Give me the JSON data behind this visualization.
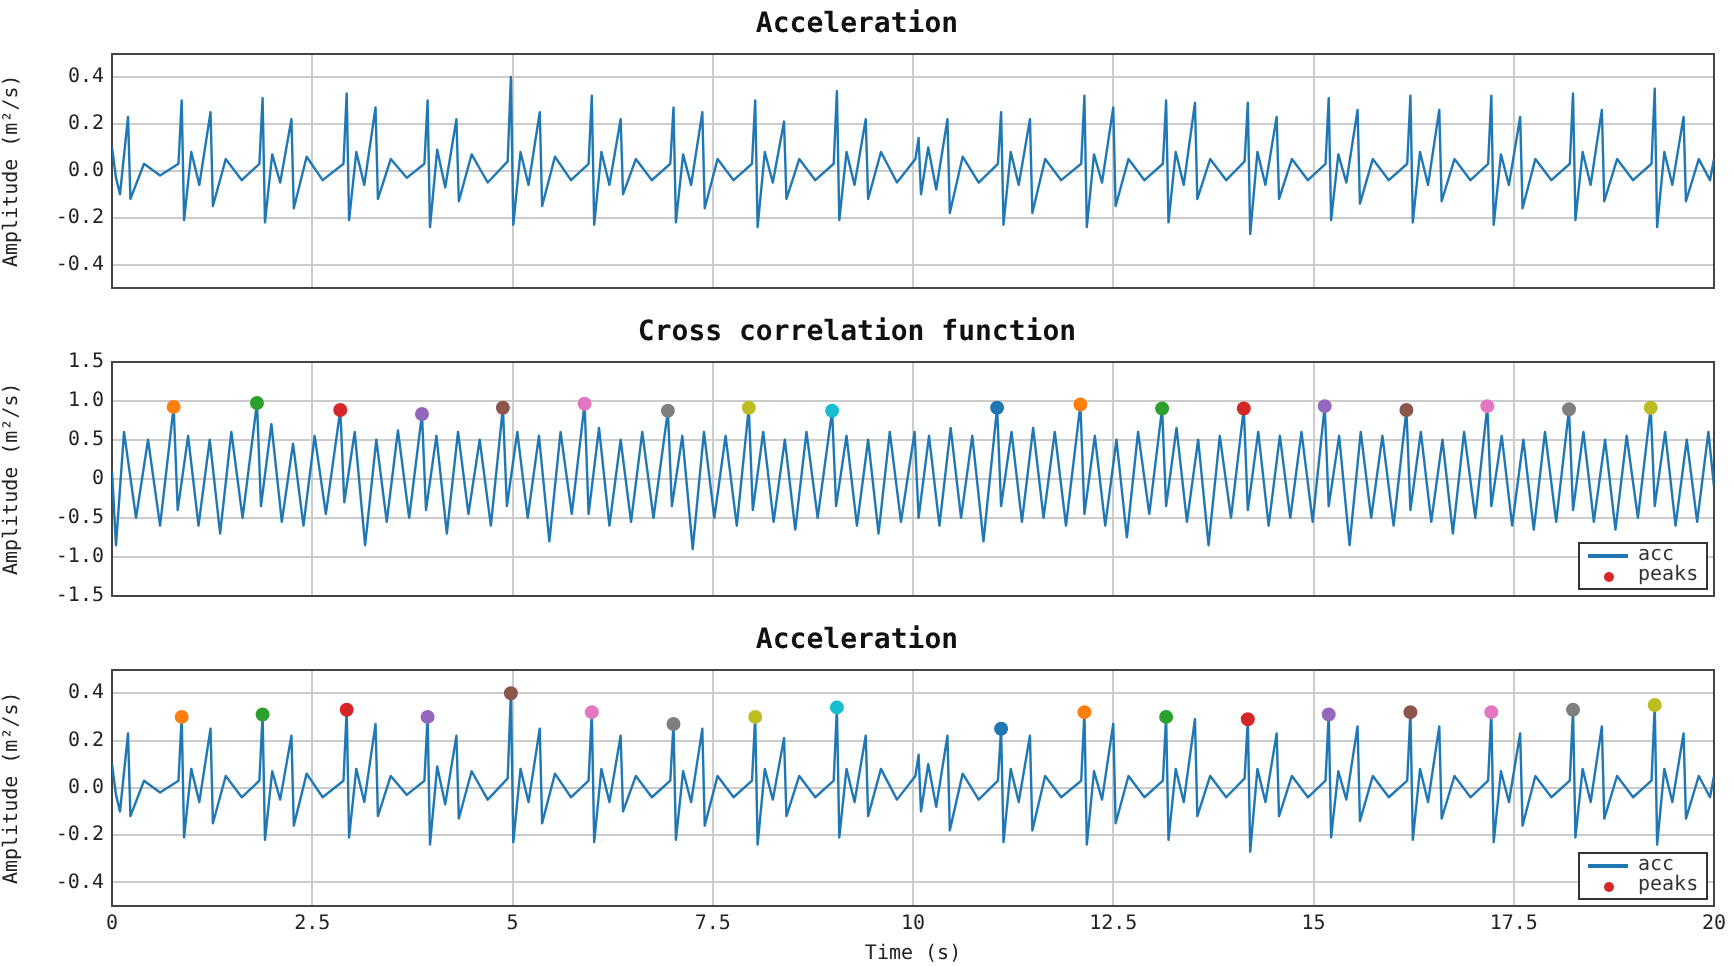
{
  "chart_data": [
    {
      "type": "line",
      "title": "Acceleration",
      "ylabel": "Amplitude (m²/s)",
      "xlim": [
        0,
        20
      ],
      "xticks": [
        0,
        2.5,
        5,
        7.5,
        10,
        12.5,
        15,
        17.5,
        20
      ],
      "ylim": [
        -0.5,
        0.5
      ],
      "yticks": [
        {
          "value": -0.4,
          "label": "-0.4"
        },
        {
          "value": -0.2,
          "label": "-0.2"
        },
        {
          "value": 0,
          "label": "0.0"
        },
        {
          "value": 0.2,
          "label": "0.2"
        },
        {
          "value": 0.4,
          "label": "0.4"
        }
      ],
      "grid": true,
      "legend": false,
      "tick_labels": "y",
      "x": [
        0,
        0.05,
        0.1,
        0.2,
        0.23,
        0.4,
        0.6,
        0.83,
        0.87,
        0.9,
        0.99,
        1.09,
        1.23,
        1.26,
        1.42,
        1.62,
        1.84,
        1.88,
        1.91,
        2.0,
        2.1,
        2.24,
        2.27,
        2.43,
        2.63,
        2.89,
        2.93,
        2.96,
        3.05,
        3.15,
        3.29,
        3.32,
        3.48,
        3.68,
        3.9,
        3.94,
        3.97,
        4.06,
        4.16,
        4.3,
        4.33,
        4.49,
        4.69,
        4.94,
        4.98,
        5.01,
        5.1,
        5.2,
        5.34,
        5.37,
        5.53,
        5.73,
        5.95,
        5.99,
        6.02,
        6.11,
        6.21,
        6.35,
        6.38,
        6.54,
        6.74,
        6.97,
        7.01,
        7.04,
        7.13,
        7.23,
        7.37,
        7.4,
        7.56,
        7.76,
        7.99,
        8.03,
        8.06,
        8.15,
        8.25,
        8.39,
        8.42,
        8.58,
        8.78,
        9.01,
        9.05,
        9.08,
        9.17,
        9.27,
        9.41,
        9.44,
        9.6,
        9.8,
        10.03,
        10.07,
        10.1,
        10.19,
        10.29,
        10.43,
        10.46,
        10.62,
        10.82,
        11.06,
        11.1,
        11.13,
        11.22,
        11.32,
        11.46,
        11.49,
        11.65,
        11.85,
        12.1,
        12.14,
        12.17,
        12.26,
        12.36,
        12.5,
        12.53,
        12.69,
        12.89,
        13.12,
        13.16,
        13.19,
        13.28,
        13.38,
        13.52,
        13.55,
        13.71,
        13.91,
        14.14,
        14.18,
        14.21,
        14.3,
        14.4,
        14.54,
        14.57,
        14.73,
        14.93,
        15.15,
        15.19,
        15.22,
        15.31,
        15.41,
        15.55,
        15.58,
        15.74,
        15.94,
        16.17,
        16.21,
        16.24,
        16.33,
        16.43,
        16.57,
        16.6,
        16.76,
        16.96,
        17.18,
        17.22,
        17.25,
        17.34,
        17.44,
        17.58,
        17.61,
        17.77,
        17.97,
        18.2,
        18.24,
        18.27,
        18.36,
        18.46,
        18.6,
        18.63,
        18.79,
        18.99,
        19.22,
        19.26,
        19.29,
        19.38,
        19.48,
        19.62,
        19.65,
        19.81,
        19.95,
        20
      ],
      "series": [
        {
          "color": "#1f77b4",
          "marker": "none",
          "values": [
            0.1,
            -0.03,
            -0.1,
            0.23,
            -0.12,
            0.03,
            -0.02,
            0.03,
            0.3,
            -0.21,
            0.08,
            -0.06,
            0.25,
            -0.15,
            0.05,
            -0.04,
            0.03,
            0.31,
            -0.22,
            0.07,
            -0.05,
            0.22,
            -0.16,
            0.06,
            -0.04,
            0.03,
            0.33,
            -0.21,
            0.08,
            -0.06,
            0.27,
            -0.12,
            0.05,
            -0.03,
            0.03,
            0.3,
            -0.24,
            0.09,
            -0.07,
            0.22,
            -0.13,
            0.07,
            -0.05,
            0.04,
            0.4,
            -0.23,
            0.08,
            -0.06,
            0.25,
            -0.15,
            0.06,
            -0.04,
            0.03,
            0.32,
            -0.23,
            0.08,
            -0.06,
            0.22,
            -0.1,
            0.05,
            -0.04,
            0.03,
            0.27,
            -0.22,
            0.07,
            -0.06,
            0.25,
            -0.16,
            0.05,
            -0.04,
            0.03,
            0.3,
            -0.24,
            0.08,
            -0.05,
            0.21,
            -0.12,
            0.05,
            -0.04,
            0.03,
            0.34,
            -0.21,
            0.08,
            -0.06,
            0.22,
            -0.12,
            0.08,
            -0.05,
            0.05,
            0.14,
            -0.1,
            0.1,
            -0.08,
            0.22,
            -0.18,
            0.06,
            -0.05,
            0.03,
            0.25,
            -0.23,
            0.08,
            -0.06,
            0.22,
            -0.18,
            0.05,
            -0.04,
            0.03,
            0.32,
            -0.24,
            0.07,
            -0.05,
            0.27,
            -0.15,
            0.05,
            -0.04,
            0.03,
            0.3,
            -0.22,
            0.08,
            -0.06,
            0.29,
            -0.12,
            0.05,
            -0.04,
            0.04,
            0.29,
            -0.27,
            0.08,
            -0.06,
            0.23,
            -0.12,
            0.05,
            -0.04,
            0.03,
            0.31,
            -0.21,
            0.07,
            -0.05,
            0.26,
            -0.14,
            0.05,
            -0.04,
            0.03,
            0.32,
            -0.22,
            0.08,
            -0.06,
            0.26,
            -0.13,
            0.05,
            -0.04,
            0.03,
            0.32,
            -0.23,
            0.07,
            -0.06,
            0.23,
            -0.16,
            0.05,
            -0.04,
            0.03,
            0.33,
            -0.21,
            0.08,
            -0.06,
            0.26,
            -0.13,
            0.05,
            -0.04,
            0.03,
            0.35,
            -0.24,
            0.08,
            -0.06,
            0.23,
            -0.13,
            0.05,
            -0.04,
            0.05
          ]
        }
      ]
    },
    {
      "type": "line",
      "title": "Cross correlation function",
      "ylabel": "Amplitude (m²/s)",
      "xlim": [
        0,
        20
      ],
      "xticks": [
        0,
        2.5,
        5,
        7.5,
        10,
        12.5,
        15,
        17.5,
        20
      ],
      "ylim": [
        -1.5,
        1.5
      ],
      "yticks": [
        {
          "value": -1.5,
          "label": "-1.5"
        },
        {
          "value": -1,
          "label": "-1.0"
        },
        {
          "value": -0.5,
          "label": "-0.5"
        },
        0,
        {
          "value": 0.5,
          "label": "0.5"
        },
        {
          "value": 1,
          "label": "1.0"
        },
        {
          "value": 1.5,
          "label": "1.5"
        }
      ],
      "grid": true,
      "legend": "bottom right",
      "tick_labels": "y",
      "series": [
        {
          "name": "acc",
          "color": "#1f77b4",
          "marker": "none",
          "x": [
            0,
            0.05,
            0.15,
            0.3,
            0.45,
            0.6,
            0.77,
            0.82,
            0.95,
            1.08,
            1.22,
            1.35,
            1.49,
            1.63,
            1.81,
            1.86,
            1.99,
            2.12,
            2.26,
            2.39,
            2.53,
            2.67,
            2.85,
            2.9,
            3.03,
            3.16,
            3.3,
            3.43,
            3.57,
            3.71,
            3.87,
            3.92,
            4.05,
            4.18,
            4.32,
            4.45,
            4.59,
            4.73,
            4.88,
            4.93,
            5.06,
            5.19,
            5.33,
            5.46,
            5.6,
            5.74,
            5.9,
            5.95,
            6.08,
            6.21,
            6.35,
            6.48,
            6.62,
            6.76,
            6.94,
            6.99,
            7.12,
            7.25,
            7.39,
            7.52,
            7.66,
            7.8,
            7.95,
            8.0,
            8.13,
            8.26,
            8.4,
            8.53,
            8.67,
            8.81,
            8.99,
            9.04,
            9.17,
            9.3,
            9.44,
            9.57,
            9.71,
            9.85,
            10.02,
            10.07,
            10.2,
            10.33,
            10.47,
            10.6,
            10.74,
            10.88,
            11.05,
            11.1,
            11.23,
            11.36,
            11.5,
            11.63,
            11.77,
            11.91,
            12.09,
            12.14,
            12.27,
            12.4,
            12.54,
            12.67,
            12.81,
            12.95,
            13.11,
            13.16,
            13.29,
            13.42,
            13.56,
            13.69,
            13.83,
            13.97,
            14.13,
            14.18,
            14.31,
            14.44,
            14.58,
            14.71,
            14.85,
            14.99,
            15.14,
            15.19,
            15.32,
            15.45,
            15.59,
            15.72,
            15.86,
            16.0,
            16.16,
            16.21,
            16.34,
            16.47,
            16.61,
            16.74,
            16.88,
            17.02,
            17.17,
            17.22,
            17.35,
            17.48,
            17.62,
            17.75,
            17.89,
            18.03,
            18.19,
            18.24,
            18.37,
            18.5,
            18.64,
            18.77,
            18.91,
            19.05,
            19.21,
            19.26,
            19.39,
            19.52,
            19.66,
            19.79,
            19.93,
            20
          ],
          "values": [
            0.1,
            -0.85,
            0.6,
            -0.5,
            0.5,
            -0.6,
            0.92,
            -0.4,
            0.55,
            -0.6,
            0.5,
            -0.7,
            0.6,
            -0.5,
            0.97,
            -0.35,
            0.7,
            -0.55,
            0.45,
            -0.6,
            0.55,
            -0.45,
            0.88,
            -0.3,
            0.6,
            -0.85,
            0.5,
            -0.55,
            0.62,
            -0.5,
            0.83,
            -0.4,
            0.55,
            -0.7,
            0.6,
            -0.45,
            0.5,
            -0.6,
            0.91,
            -0.35,
            0.6,
            -0.5,
            0.55,
            -0.8,
            0.6,
            -0.45,
            0.96,
            -0.45,
            0.65,
            -0.6,
            0.5,
            -0.55,
            0.6,
            -0.5,
            0.87,
            -0.35,
            0.55,
            -0.9,
            0.6,
            -0.5,
            0.55,
            -0.6,
            0.91,
            -0.4,
            0.6,
            -0.55,
            0.5,
            -0.65,
            0.6,
            -0.5,
            0.87,
            -0.35,
            0.55,
            -0.6,
            0.5,
            -0.7,
            0.6,
            -0.55,
            0.6,
            -0.5,
            0.55,
            -0.6,
            0.65,
            -0.5,
            0.55,
            -0.8,
            0.91,
            -0.35,
            0.6,
            -0.55,
            0.65,
            -0.5,
            0.6,
            -0.6,
            0.95,
            -0.45,
            0.55,
            -0.6,
            0.5,
            -0.75,
            0.6,
            -0.45,
            0.9,
            -0.35,
            0.65,
            -0.55,
            0.5,
            -0.85,
            0.55,
            -0.5,
            0.9,
            -0.4,
            0.6,
            -0.6,
            0.55,
            -0.5,
            0.6,
            -0.55,
            0.93,
            -0.35,
            0.55,
            -0.85,
            0.6,
            -0.5,
            0.55,
            -0.6,
            0.88,
            -0.4,
            0.6,
            -0.55,
            0.5,
            -0.7,
            0.6,
            -0.5,
            0.93,
            -0.35,
            0.55,
            -0.6,
            0.5,
            -0.65,
            0.6,
            -0.55,
            0.89,
            -0.4,
            0.6,
            -0.55,
            0.5,
            -0.65,
            0.55,
            -0.5,
            0.91,
            -0.35,
            0.6,
            -0.6,
            0.5,
            -0.55,
            0.6,
            -0.1
          ]
        },
        {
          "name": "peaks",
          "type": "scatter",
          "marker": "circle",
          "color": "#d62728",
          "x": [
            0.77,
            1.81,
            2.85,
            3.87,
            4.88,
            5.9,
            6.94,
            7.95,
            8.99,
            11.05,
            12.09,
            13.11,
            14.13,
            15.14,
            16.16,
            17.17,
            18.19,
            19.21
          ],
          "values": [
            0.92,
            0.97,
            0.88,
            0.83,
            0.91,
            0.96,
            0.87,
            0.91,
            0.87,
            0.91,
            0.95,
            0.9,
            0.9,
            0.93,
            0.88,
            0.93,
            0.89,
            0.91
          ],
          "colors": [
            "#ff7f0e",
            "#2ca02c",
            "#d62728",
            "#9467bd",
            "#8c564b",
            "#e377c2",
            "#7f7f7f",
            "#bcbd22",
            "#17becf",
            "#1f77b4",
            "#ff7f0e",
            "#2ca02c",
            "#d62728",
            "#9467bd",
            "#8c564b",
            "#e377c2",
            "#7f7f7f",
            "#bcbd22"
          ]
        }
      ]
    },
    {
      "type": "line",
      "title": "Acceleration",
      "xlabel": "Time (s)",
      "ylabel": "Amplitude (m²/s)",
      "xlim": [
        0,
        20
      ],
      "xticks": [
        0,
        2.5,
        5,
        7.5,
        10,
        12.5,
        15,
        17.5,
        20
      ],
      "ylim": [
        -0.5,
        0.5
      ],
      "yticks": [
        {
          "value": -0.4,
          "label": "-0.4"
        },
        {
          "value": -0.2,
          "label": "-0.2"
        },
        {
          "value": 0,
          "label": "0.0"
        },
        {
          "value": 0.2,
          "label": "0.2"
        },
        {
          "value": 0.4,
          "label": "0.4"
        }
      ],
      "grid": true,
      "legend": "bottom right",
      "series": [
        {
          "name": "acc",
          "color": "#1f77b4",
          "marker": "none",
          "x": [
            0,
            0.05,
            0.1,
            0.2,
            0.23,
            0.4,
            0.6,
            0.83,
            0.87,
            0.9,
            0.99,
            1.09,
            1.23,
            1.26,
            1.42,
            1.62,
            1.84,
            1.88,
            1.91,
            2.0,
            2.1,
            2.24,
            2.27,
            2.43,
            2.63,
            2.89,
            2.93,
            2.96,
            3.05,
            3.15,
            3.29,
            3.32,
            3.48,
            3.68,
            3.9,
            3.94,
            3.97,
            4.06,
            4.16,
            4.3,
            4.33,
            4.49,
            4.69,
            4.94,
            4.98,
            5.01,
            5.1,
            5.2,
            5.34,
            5.37,
            5.53,
            5.73,
            5.95,
            5.99,
            6.02,
            6.11,
            6.21,
            6.35,
            6.38,
            6.54,
            6.74,
            6.97,
            7.01,
            7.04,
            7.13,
            7.23,
            7.37,
            7.4,
            7.56,
            7.76,
            7.99,
            8.03,
            8.06,
            8.15,
            8.25,
            8.39,
            8.42,
            8.58,
            8.78,
            9.01,
            9.05,
            9.08,
            9.17,
            9.27,
            9.41,
            9.44,
            9.6,
            9.8,
            10.03,
            10.07,
            10.1,
            10.19,
            10.29,
            10.43,
            10.46,
            10.62,
            10.82,
            11.06,
            11.1,
            11.13,
            11.22,
            11.32,
            11.46,
            11.49,
            11.65,
            11.85,
            12.1,
            12.14,
            12.17,
            12.26,
            12.36,
            12.5,
            12.53,
            12.69,
            12.89,
            13.12,
            13.16,
            13.19,
            13.28,
            13.38,
            13.52,
            13.55,
            13.71,
            13.91,
            14.14,
            14.18,
            14.21,
            14.3,
            14.4,
            14.54,
            14.57,
            14.73,
            14.93,
            15.15,
            15.19,
            15.22,
            15.31,
            15.41,
            15.55,
            15.58,
            15.74,
            15.94,
            16.17,
            16.21,
            16.24,
            16.33,
            16.43,
            16.57,
            16.6,
            16.76,
            16.96,
            17.18,
            17.22,
            17.25,
            17.34,
            17.44,
            17.58,
            17.61,
            17.77,
            17.97,
            18.2,
            18.24,
            18.27,
            18.36,
            18.46,
            18.6,
            18.63,
            18.79,
            18.99,
            19.22,
            19.26,
            19.29,
            19.38,
            19.48,
            19.62,
            19.65,
            19.81,
            19.95,
            20
          ],
          "values": [
            0.1,
            -0.03,
            -0.1,
            0.23,
            -0.12,
            0.03,
            -0.02,
            0.03,
            0.3,
            -0.21,
            0.08,
            -0.06,
            0.25,
            -0.15,
            0.05,
            -0.04,
            0.03,
            0.31,
            -0.22,
            0.07,
            -0.05,
            0.22,
            -0.16,
            0.06,
            -0.04,
            0.03,
            0.33,
            -0.21,
            0.08,
            -0.06,
            0.27,
            -0.12,
            0.05,
            -0.03,
            0.03,
            0.3,
            -0.24,
            0.09,
            -0.07,
            0.22,
            -0.13,
            0.07,
            -0.05,
            0.04,
            0.4,
            -0.23,
            0.08,
            -0.06,
            0.25,
            -0.15,
            0.06,
            -0.04,
            0.03,
            0.32,
            -0.23,
            0.08,
            -0.06,
            0.22,
            -0.1,
            0.05,
            -0.04,
            0.03,
            0.27,
            -0.22,
            0.07,
            -0.06,
            0.25,
            -0.16,
            0.05,
            -0.04,
            0.03,
            0.3,
            -0.24,
            0.08,
            -0.05,
            0.21,
            -0.12,
            0.05,
            -0.04,
            0.03,
            0.34,
            -0.21,
            0.08,
            -0.06,
            0.22,
            -0.12,
            0.08,
            -0.05,
            0.05,
            0.14,
            -0.1,
            0.1,
            -0.08,
            0.22,
            -0.18,
            0.06,
            -0.05,
            0.03,
            0.25,
            -0.23,
            0.08,
            -0.06,
            0.22,
            -0.18,
            0.05,
            -0.04,
            0.03,
            0.32,
            -0.24,
            0.07,
            -0.05,
            0.27,
            -0.15,
            0.05,
            -0.04,
            0.03,
            0.3,
            -0.22,
            0.08,
            -0.06,
            0.29,
            -0.12,
            0.05,
            -0.04,
            0.04,
            0.29,
            -0.27,
            0.08,
            -0.06,
            0.23,
            -0.12,
            0.05,
            -0.04,
            0.03,
            0.31,
            -0.21,
            0.07,
            -0.05,
            0.26,
            -0.14,
            0.05,
            -0.04,
            0.03,
            0.32,
            -0.22,
            0.08,
            -0.06,
            0.26,
            -0.13,
            0.05,
            -0.04,
            0.03,
            0.32,
            -0.23,
            0.07,
            -0.06,
            0.23,
            -0.16,
            0.05,
            -0.04,
            0.03,
            0.33,
            -0.21,
            0.08,
            -0.06,
            0.26,
            -0.13,
            0.05,
            -0.04,
            0.03,
            0.35,
            -0.24,
            0.08,
            -0.06,
            0.23,
            -0.13,
            0.05,
            -0.04,
            0.05
          ]
        },
        {
          "name": "peaks",
          "type": "scatter",
          "marker": "circle",
          "color": "#d62728",
          "x": [
            0.87,
            1.88,
            2.93,
            3.94,
            4.98,
            5.99,
            7.01,
            8.03,
            9.05,
            11.1,
            12.14,
            13.16,
            14.18,
            15.19,
            16.21,
            17.22,
            18.24,
            19.26
          ],
          "values": [
            0.3,
            0.31,
            0.33,
            0.3,
            0.4,
            0.32,
            0.27,
            0.3,
            0.34,
            0.25,
            0.32,
            0.3,
            0.29,
            0.31,
            0.32,
            0.32,
            0.33,
            0.35
          ],
          "colors": [
            "#ff7f0e",
            "#2ca02c",
            "#d62728",
            "#9467bd",
            "#8c564b",
            "#e377c2",
            "#7f7f7f",
            "#bcbd22",
            "#17becf",
            "#1f77b4",
            "#ff7f0e",
            "#2ca02c",
            "#d62728",
            "#9467bd",
            "#8c564b",
            "#e377c2",
            "#7f7f7f",
            "#bcbd22"
          ]
        }
      ]
    }
  ]
}
